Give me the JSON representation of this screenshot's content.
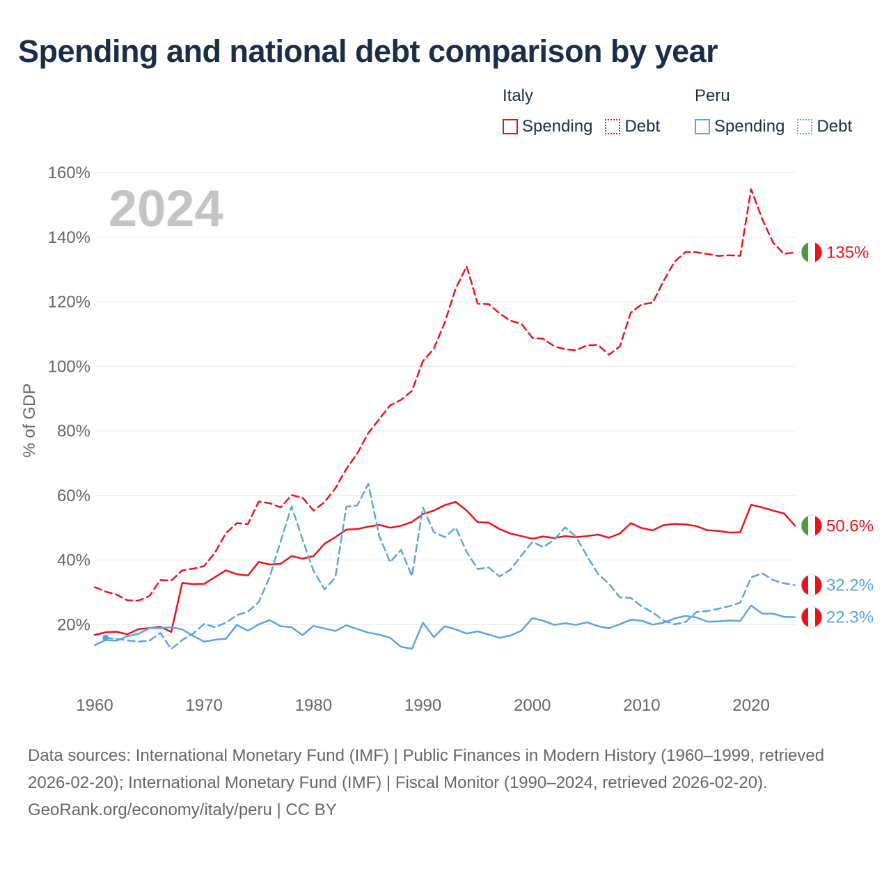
{
  "title": "Spending and national debt comparison by year",
  "year_label": "2024",
  "legend": {
    "italy": {
      "name": "Italy",
      "spending": "Spending",
      "debt": "Debt"
    },
    "peru": {
      "name": "Peru",
      "spending": "Spending",
      "debt": "Debt"
    }
  },
  "colors": {
    "italy": "#e8141c",
    "peru": "#5ba3e3"
  },
  "footer": {
    "sources": "Data sources: International Monetary Fund (IMF) | Public Finances in Modern History (1960–1999, retrieved 2026-02-20); International Monetary Fund (IMF) | Fiscal Monitor (1990–2024, retrieved 2026-02-20).",
    "credit": "GeoRank.org/economy/italy/peru | CC BY"
  },
  "chart_data": {
    "type": "line",
    "title": "Spending and national debt comparison by year",
    "xlabel": "",
    "ylabel": "% of GDP",
    "xlim": [
      1960,
      2024
    ],
    "ylim": [
      0,
      160
    ],
    "x_ticks": [
      1960,
      1970,
      1980,
      1990,
      2000,
      2010,
      2020
    ],
    "y_ticks": [
      20,
      40,
      60,
      80,
      100,
      120,
      140,
      160
    ],
    "grid": true,
    "end_labels": [
      {
        "series": "Italy Debt",
        "text": "135%",
        "flag": "italy"
      },
      {
        "series": "Italy Spending",
        "text": "50.6%",
        "flag": "italy"
      },
      {
        "series": "Peru Debt",
        "text": "32.2%",
        "flag": "peru"
      },
      {
        "series": "Peru Spending",
        "text": "22.3%",
        "flag": "peru"
      }
    ],
    "series": [
      {
        "name": "Italy Debt",
        "country": "italy",
        "dashed": true,
        "start": 1960,
        "values": [
          31.6,
          30.2,
          29.3,
          27.5,
          27.4,
          28.8,
          33.8,
          33.6,
          36.8,
          37.3,
          38.1,
          42.3,
          48.3,
          51.4,
          51.1,
          58.1,
          57.6,
          56.3,
          60.1,
          59.3,
          55.3,
          57.9,
          62.2,
          68.2,
          73.0,
          79.3,
          83.6,
          87.9,
          89.6,
          92.4,
          101.6,
          105.5,
          113.6,
          124.1,
          131.0,
          119.4,
          119.3,
          116.4,
          114.1,
          113.2,
          108.8,
          108.5,
          106.2,
          105.3,
          105.0,
          106.5,
          106.6,
          103.6,
          106.2,
          116.6,
          119.2,
          119.7,
          126.5,
          132.4,
          135.4,
          135.3,
          134.8,
          134.2,
          134.4,
          134.2,
          154.9,
          145.7,
          138.3,
          134.8,
          135.3
        ]
      },
      {
        "name": "Italy Spending",
        "country": "italy",
        "dashed": false,
        "start": 1960,
        "values": [
          16.8,
          17.6,
          17.8,
          17.0,
          18.6,
          18.9,
          19.3,
          17.7,
          32.9,
          32.5,
          32.6,
          34.7,
          36.8,
          35.6,
          35.2,
          39.4,
          38.6,
          38.8,
          41.2,
          40.4,
          41.2,
          45.0,
          47.1,
          49.4,
          49.6,
          50.3,
          50.9,
          50.0,
          50.6,
          51.8,
          54.2,
          55.3,
          57.0,
          58.0,
          55.3,
          51.7,
          51.6,
          49.6,
          48.2,
          47.4,
          46.6,
          47.3,
          46.8,
          47.4,
          47.1,
          47.4,
          47.9,
          46.9,
          48.2,
          51.4,
          49.9,
          49.2,
          50.8,
          51.2,
          51.0,
          50.5,
          49.2,
          49.0,
          48.5,
          48.6,
          57.1,
          56.3,
          55.3,
          54.4,
          50.6
        ]
      },
      {
        "name": "Peru Debt",
        "country": "peru",
        "dashed": true,
        "start": 1961,
        "values": [
          15.9,
          15.6,
          15.1,
          14.7,
          15.0,
          17.4,
          12.4,
          15.2,
          17.2,
          20.2,
          19.2,
          20.6,
          22.9,
          24.0,
          27.0,
          34.8,
          45.8,
          56.6,
          46.3,
          36.7,
          30.9,
          34.6,
          56.5,
          56.9,
          63.6,
          47.5,
          39.3,
          43.1,
          35.0,
          56.3,
          48.6,
          47.1,
          50.0,
          42.5,
          37.2,
          37.7,
          34.9,
          37.0,
          41.4,
          45.6,
          44.0,
          46.3,
          50.1,
          47.2,
          41.2,
          35.7,
          32.6,
          28.4,
          28.3,
          25.6,
          23.8,
          21.2,
          20.1,
          20.8,
          23.9,
          24.2,
          24.9,
          25.7,
          26.8,
          34.6,
          35.9,
          33.8,
          32.8,
          32.2
        ]
      },
      {
        "name": "Peru Spending",
        "country": "peru",
        "dashed": false,
        "start": 1960,
        "values": [
          13.6,
          15.2,
          15.0,
          16.4,
          17.1,
          18.9,
          18.9,
          19.2,
          18.5,
          16.5,
          14.7,
          15.3,
          15.6,
          19.9,
          18.1,
          20.1,
          21.4,
          19.5,
          19.2,
          16.7,
          19.6,
          18.8,
          18.0,
          19.8,
          18.6,
          17.5,
          16.9,
          15.9,
          13.1,
          12.5,
          20.6,
          16.1,
          19.5,
          18.5,
          17.2,
          17.9,
          16.9,
          15.9,
          16.6,
          18.1,
          22.0,
          21.2,
          19.9,
          20.4,
          19.9,
          20.7,
          19.5,
          18.9,
          20.1,
          21.5,
          21.2,
          20.0,
          20.6,
          21.9,
          22.7,
          22.2,
          20.9,
          21.0,
          21.3,
          21.1,
          25.9,
          23.4,
          23.4,
          22.4,
          22.3
        ]
      }
    ]
  }
}
